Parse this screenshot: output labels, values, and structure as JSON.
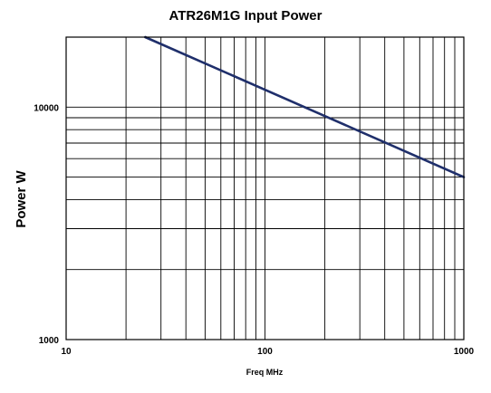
{
  "chart_data": {
    "type": "line",
    "title": "ATR26M1G Input Power",
    "xlabel": "Freq MHz",
    "ylabel": "Power W",
    "x_scale": "log",
    "y_scale": "log",
    "xlim": [
      10,
      1000
    ],
    "ylim": [
      1000,
      20000
    ],
    "x_tick_labels": [
      "10",
      "100",
      "1000"
    ],
    "y_tick_labels": [
      "1000",
      "10000"
    ],
    "x_grid_values": [
      20,
      30,
      40,
      50,
      60,
      70,
      80,
      90,
      100,
      200,
      300,
      400,
      500,
      600,
      700,
      800,
      900
    ],
    "y_grid_values": [
      2000,
      3000,
      4000,
      5000,
      6000,
      7000,
      8000,
      9000,
      10000
    ],
    "grid": true,
    "line_color": "#1f2f6b",
    "series": [
      {
        "x": [
          25,
          1000
        ],
        "y": [
          20000,
          5000
        ]
      }
    ]
  }
}
